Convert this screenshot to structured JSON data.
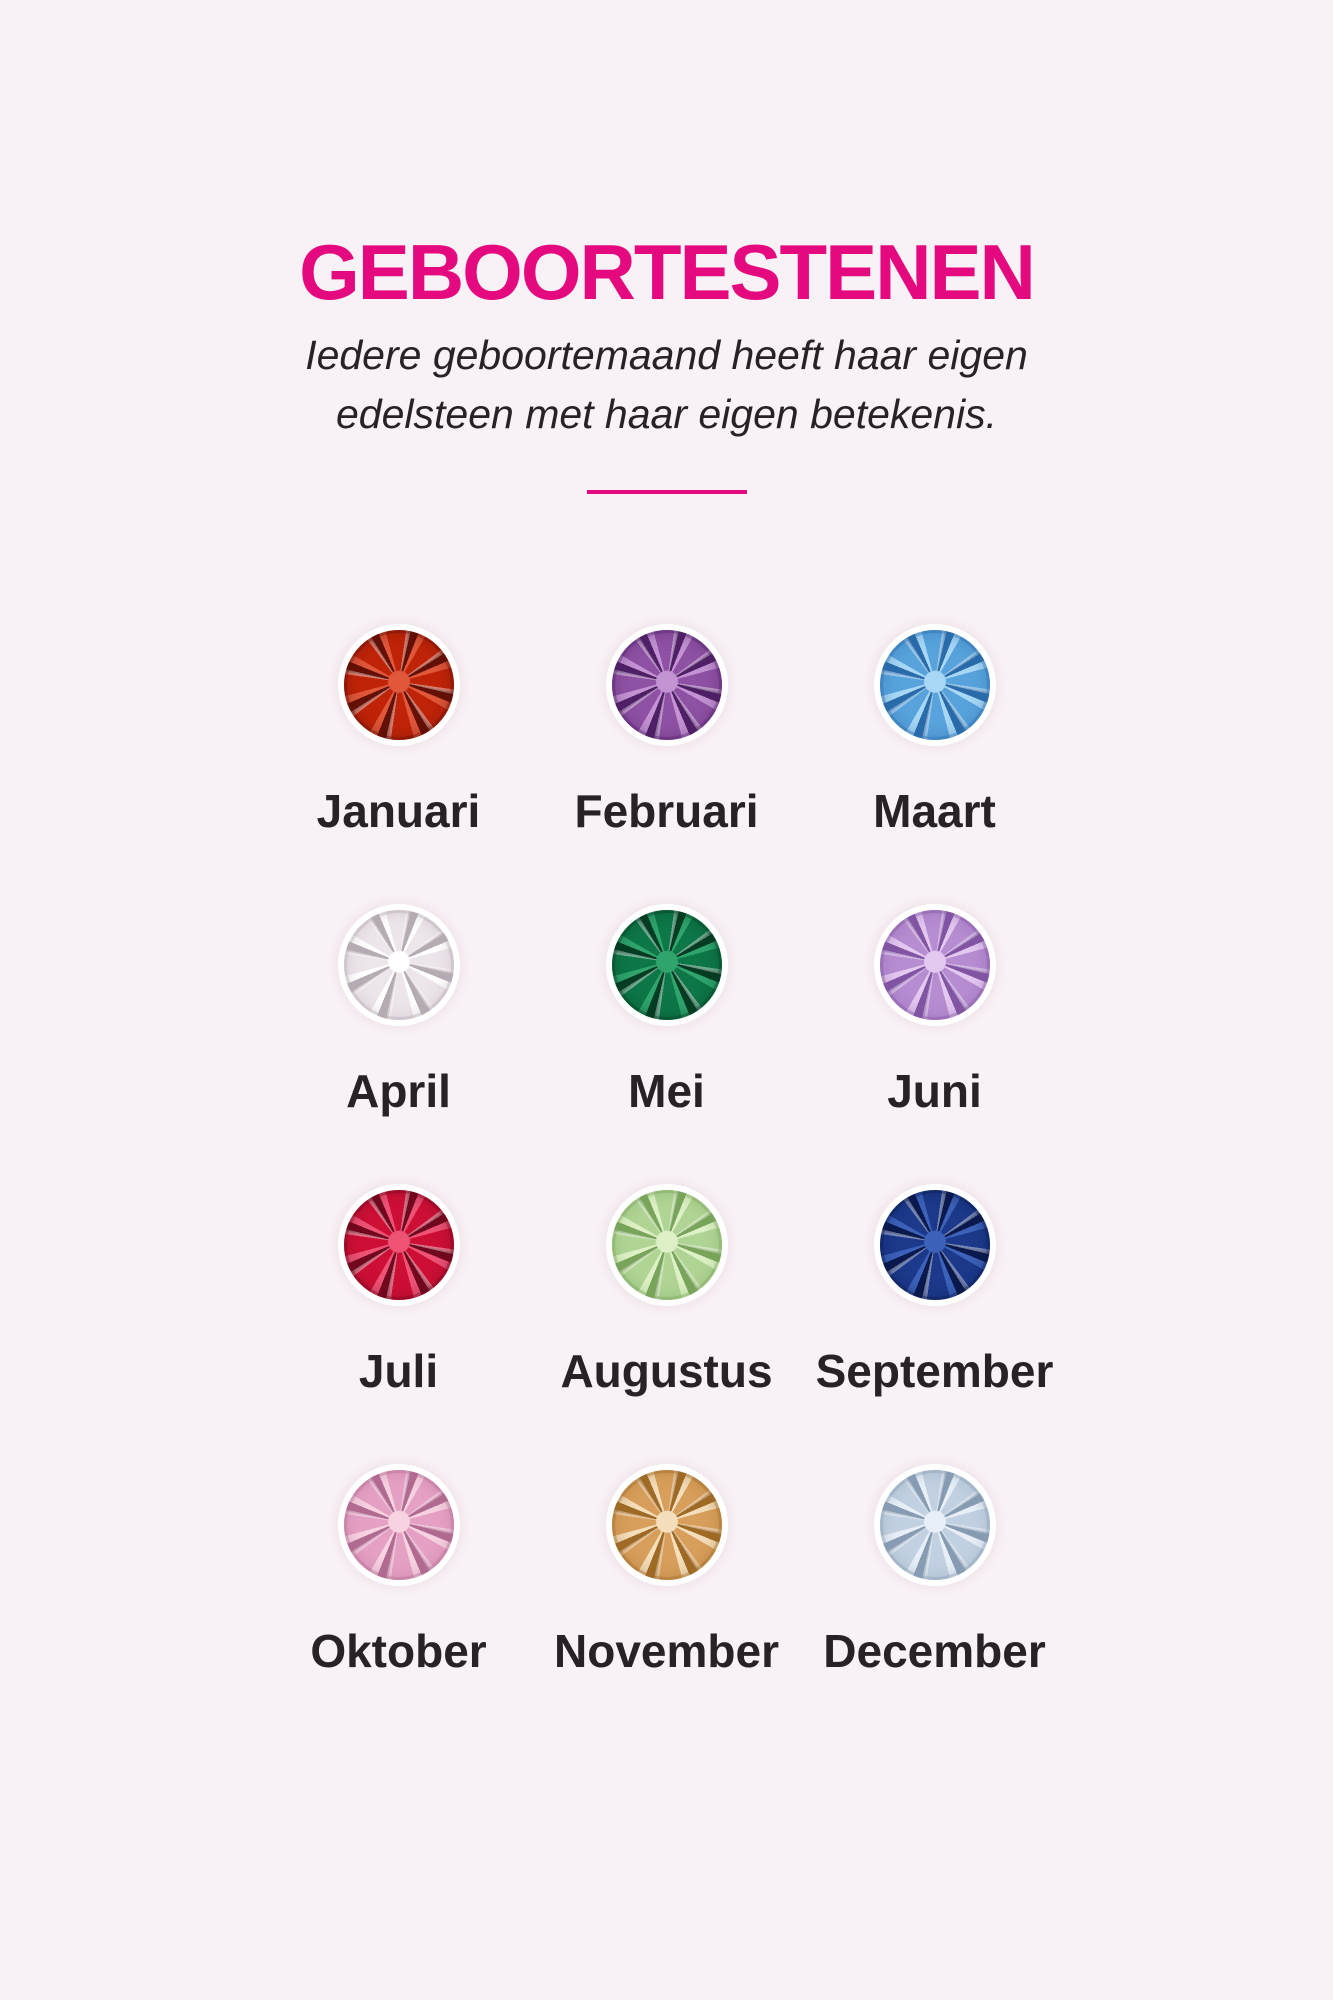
{
  "page": {
    "background_color": "#f8f1f5",
    "accent_color": "#e5097f",
    "text_color": "#272225"
  },
  "header": {
    "title": "GEBOORTESTENEN",
    "subtitle_lines": [
      "Iedere geboortemaand heeft haar eigen",
      "edelsteen met haar eigen betekenis."
    ]
  },
  "months": [
    {
      "label": "Januari",
      "gem_colors": {
        "light": "#e0573a",
        "base": "#c02408",
        "dark": "#641006"
      }
    },
    {
      "label": "Februari",
      "gem_colors": {
        "light": "#c393d3",
        "base": "#8f51a4",
        "dark": "#4f2066"
      }
    },
    {
      "label": "Maart",
      "gem_colors": {
        "light": "#a8d8f5",
        "base": "#58a3dc",
        "dark": "#2a6baa"
      }
    },
    {
      "label": "April",
      "gem_colors": {
        "light": "#ffffff",
        "base": "#ece5ea",
        "dark": "#b5abb3"
      }
    },
    {
      "label": "Mei",
      "gem_colors": {
        "light": "#2fa56d",
        "base": "#0d7747",
        "dark": "#043d23"
      }
    },
    {
      "label": "Juni",
      "gem_colors": {
        "light": "#e3c8f0",
        "base": "#b78dd1",
        "dark": "#8155a3"
      }
    },
    {
      "label": "Juli",
      "gem_colors": {
        "light": "#ee5376",
        "base": "#ce0f35",
        "dark": "#71081e"
      }
    },
    {
      "label": "Augustus",
      "gem_colors": {
        "light": "#def1c6",
        "base": "#b0d494",
        "dark": "#79a45b"
      }
    },
    {
      "label": "September",
      "gem_colors": {
        "light": "#3c62ba",
        "base": "#1c398b",
        "dark": "#0a1a4e"
      }
    },
    {
      "label": "Oktober",
      "gem_colors": {
        "light": "#f7d2e1",
        "base": "#e5a1c3",
        "dark": "#b16b90"
      }
    },
    {
      "label": "November",
      "gem_colors": {
        "light": "#f4debb",
        "base": "#d89f5c",
        "dark": "#9e6a26"
      }
    },
    {
      "label": "December",
      "gem_colors": {
        "light": "#e8eff7",
        "base": "#c2d1e1",
        "dark": "#879cb2"
      }
    }
  ]
}
